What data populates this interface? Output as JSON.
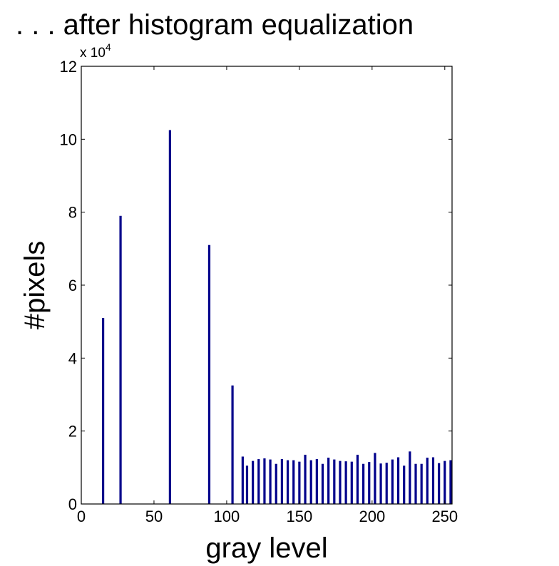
{
  "chart_data": {
    "type": "bar",
    "title": ". . . after histogram equalization",
    "xlabel": "gray level",
    "ylabel": "#pixels",
    "xlim": [
      0,
      255
    ],
    "ylim": [
      0,
      120000
    ],
    "x_ticks": [
      0,
      50,
      100,
      150,
      200,
      250
    ],
    "x_tick_labels": [
      "0",
      "50",
      "100",
      "150",
      "200",
      "250"
    ],
    "y_ticks": [
      0,
      20000,
      40000,
      60000,
      80000,
      100000,
      120000
    ],
    "y_tick_labels": [
      "0",
      "2",
      "4",
      "6",
      "8",
      "10",
      "12"
    ],
    "y_multiplier": {
      "base": "x 10",
      "exponent": "4"
    },
    "grid": false,
    "bar_color": "#00008b",
    "x": [
      15,
      27,
      61,
      88,
      104,
      111,
      114,
      118,
      122,
      126,
      130,
      134,
      138,
      142,
      146,
      150,
      154,
      158,
      162,
      166,
      170,
      174,
      178,
      182,
      186,
      190,
      194,
      198,
      202,
      206,
      210,
      214,
      218,
      222,
      226,
      230,
      234,
      238,
      242,
      246,
      250,
      254
    ],
    "values": [
      51000,
      79000,
      102500,
      71000,
      32500,
      13000,
      10500,
      11800,
      12300,
      12500,
      12200,
      11000,
      12300,
      12000,
      12000,
      11600,
      13500,
      12000,
      12300,
      11000,
      12700,
      12200,
      11800,
      11700,
      11600,
      13500,
      11000,
      11500,
      14000,
      11100,
      11300,
      12200,
      12800,
      10500,
      14400,
      11000,
      11000,
      12700,
      12800,
      11200,
      11800,
      12000
    ]
  }
}
